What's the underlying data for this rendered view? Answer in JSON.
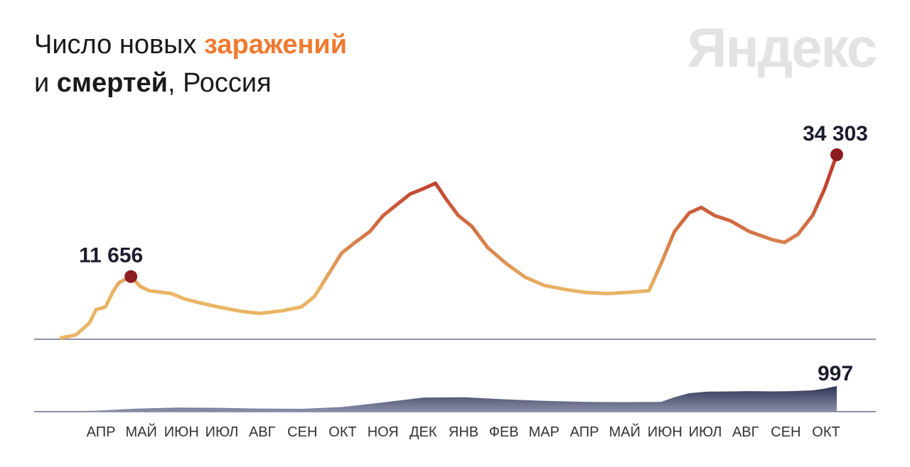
{
  "header": {
    "title_part1": "Число новых ",
    "title_accent": "заражений",
    "title_part2": "и ",
    "title_strong": "смертей",
    "title_part3": ", Россия",
    "brand": "Яндекс"
  },
  "colors": {
    "cases_low": "#e9b565",
    "cases_high": "#c2402e",
    "peak_marker": "#8b1d22",
    "deaths_area_top": "#2f3455",
    "deaths_area_bottom": "#8a8fa8",
    "axis": "#8c93a8"
  },
  "chart_data": [
    {
      "type": "line",
      "name_hint": "cases",
      "x": [
        "2020-03-20",
        "2020-03-31",
        "2020-04-10",
        "2020-04-15",
        "2020-04-22",
        "2020-04-28",
        "2020-05-02",
        "2020-05-11",
        "2020-05-18",
        "2020-05-25",
        "2020-06-01",
        "2020-06-10",
        "2020-06-20",
        "2020-07-01",
        "2020-07-15",
        "2020-08-01",
        "2020-08-15",
        "2020-09-01",
        "2020-09-15",
        "2020-09-25",
        "2020-10-05",
        "2020-10-15",
        "2020-10-25",
        "2020-11-05",
        "2020-11-15",
        "2020-11-25",
        "2020-12-05",
        "2020-12-15",
        "2020-12-24",
        "2021-01-01",
        "2021-01-10",
        "2021-01-20",
        "2021-02-01",
        "2021-02-15",
        "2021-03-01",
        "2021-03-15",
        "2021-04-01",
        "2021-04-15",
        "2021-05-01",
        "2021-05-15",
        "2021-06-01",
        "2021-06-10",
        "2021-06-20",
        "2021-07-01",
        "2021-07-10",
        "2021-07-20",
        "2021-08-01",
        "2021-08-15",
        "2021-09-01",
        "2021-09-10",
        "2021-09-20",
        "2021-10-01",
        "2021-10-10",
        "2021-10-19"
      ],
      "values": [
        250,
        800,
        3000,
        5500,
        6000,
        9000,
        10500,
        11656,
        9800,
        9000,
        8800,
        8500,
        7500,
        6800,
        6000,
        5200,
        4800,
        5300,
        6000,
        8000,
        12000,
        16000,
        18000,
        20000,
        23000,
        25000,
        27000,
        28000,
        29000,
        26000,
        23000,
        21000,
        17000,
        14000,
        11500,
        10000,
        9200,
        8700,
        8500,
        8700,
        9000,
        14000,
        20000,
        23500,
        24500,
        23000,
        22000,
        20000,
        18500,
        18000,
        19500,
        23000,
        28000,
        34303
      ],
      "labels": [
        {
          "x": "2020-05-11",
          "value_label": "11 656"
        },
        {
          "x": "2021-10-19",
          "value_label": "34 303"
        }
      ]
    },
    {
      "type": "area",
      "name_hint": "deaths",
      "x": [
        "2020-03-20",
        "2020-04-15",
        "2020-05-15",
        "2020-06-15",
        "2020-07-15",
        "2020-08-15",
        "2020-09-15",
        "2020-10-15",
        "2020-11-15",
        "2020-12-15",
        "2021-01-15",
        "2021-02-15",
        "2021-03-15",
        "2021-04-15",
        "2021-05-15",
        "2021-06-10",
        "2021-06-20",
        "2021-07-01",
        "2021-07-15",
        "2021-08-01",
        "2021-08-15",
        "2021-09-01",
        "2021-09-15",
        "2021-10-01",
        "2021-10-10",
        "2021-10-19"
      ],
      "values": [
        5,
        40,
        120,
        160,
        150,
        120,
        110,
        180,
        360,
        550,
        560,
        480,
        420,
        380,
        370,
        380,
        560,
        720,
        780,
        790,
        800,
        790,
        800,
        830,
        900,
        997
      ],
      "labels": [
        {
          "x": "2021-10-19",
          "value_label": "997"
        }
      ]
    }
  ],
  "x_axis": {
    "months": [
      "АПР",
      "МАЙ",
      "ИЮН",
      "ИЮЛ",
      "АВГ",
      "СЕН",
      "ОКТ",
      "НОЯ",
      "ДЕК",
      "ЯНВ",
      "ФЕВ",
      "МАР",
      "АПР",
      "МАЙ",
      "ИЮН",
      "ИЮЛ",
      "АВГ",
      "СЕН",
      "ОКТ"
    ]
  }
}
